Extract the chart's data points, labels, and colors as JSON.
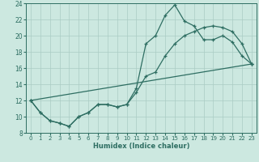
{
  "xlabel": "Humidex (Indice chaleur)",
  "bg_color": "#cce8e0",
  "grid_color": "#aaccc4",
  "line_color": "#2e6e62",
  "line1_x": [
    0,
    1,
    2,
    3,
    4,
    5,
    6,
    7,
    8,
    9,
    10,
    11,
    12,
    13,
    14,
    15,
    16,
    17,
    18,
    19,
    20,
    21,
    22,
    23
  ],
  "line1_y": [
    12,
    10.5,
    9.5,
    9.2,
    8.8,
    10.0,
    10.5,
    11.5,
    11.5,
    11.2,
    11.5,
    13.5,
    19.0,
    20.0,
    22.5,
    23.8,
    21.8,
    21.2,
    19.5,
    19.5,
    20.0,
    19.2,
    17.5,
    16.5
  ],
  "line2_x": [
    0,
    1,
    2,
    3,
    4,
    5,
    6,
    7,
    8,
    9,
    10,
    11,
    12,
    13,
    14,
    15,
    16,
    17,
    18,
    19,
    20,
    21,
    22,
    23
  ],
  "line2_y": [
    12,
    10.5,
    9.5,
    9.2,
    8.8,
    10.0,
    10.5,
    11.5,
    11.5,
    11.2,
    11.5,
    13.0,
    15.0,
    15.5,
    17.5,
    19.0,
    20.0,
    20.5,
    21.0,
    21.2,
    21.0,
    20.5,
    19.0,
    16.5
  ],
  "line3_x": [
    0,
    23
  ],
  "line3_y": [
    12,
    16.5
  ],
  "xlim": [
    -0.5,
    23.5
  ],
  "ylim": [
    8,
    24
  ],
  "xticks": [
    0,
    1,
    2,
    3,
    4,
    5,
    6,
    7,
    8,
    9,
    10,
    11,
    12,
    13,
    14,
    15,
    16,
    17,
    18,
    19,
    20,
    21,
    22,
    23
  ],
  "yticks": [
    8,
    10,
    12,
    14,
    16,
    18,
    20,
    22,
    24
  ],
  "xlabel_fontsize": 6.0,
  "tick_fontsize": 5.0
}
